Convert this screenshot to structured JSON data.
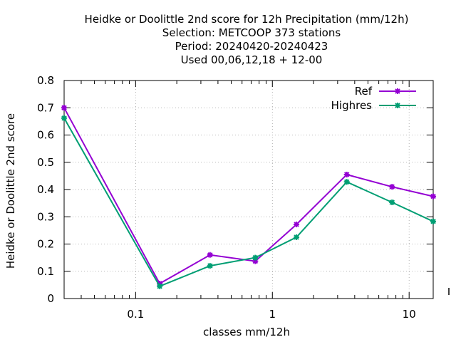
{
  "chart_data": {
    "type": "line",
    "title_lines": [
      "Heidke or Doolittle 2nd score  for 12h Precipitation (mm/12h)",
      "Selection: METCOOP    373 stations",
      "Period: 20240420-20240423",
      "Used  00,06,12,18 + 12-00"
    ],
    "xlabel": "classes mm/12h",
    "ylabel": "Heidke or Doolittle 2nd score",
    "xscale": "log",
    "xlim": [
      0.03,
      15
    ],
    "ylim": [
      0,
      0.8
    ],
    "x_ticks": [
      0.1,
      1,
      10
    ],
    "x_tick_labels": [
      "0.1",
      "1",
      "10"
    ],
    "y_ticks": [
      0,
      0.1,
      0.2,
      0.3,
      0.4,
      0.5,
      0.6,
      0.7,
      0.8
    ],
    "y_tick_labels": [
      "0",
      "0.1",
      "0.2",
      "0.3",
      "0.4",
      "0.5",
      "0.6",
      "0.7",
      "0.8"
    ],
    "grid": true,
    "legend_position": "top-right",
    "x": [
      0.03,
      0.15,
      0.35,
      0.75,
      1.5,
      3.5,
      7.5,
      15
    ],
    "series": [
      {
        "name": "Ref",
        "color": "#9400d3",
        "values": [
          0.7,
          0.055,
          0.16,
          0.137,
          0.272,
          0.455,
          0.41,
          0.375
        ]
      },
      {
        "name": "Highres",
        "color": "#009e73",
        "values": [
          0.662,
          0.045,
          0.12,
          0.15,
          0.225,
          0.428,
          0.353,
          0.283
        ]
      }
    ]
  }
}
